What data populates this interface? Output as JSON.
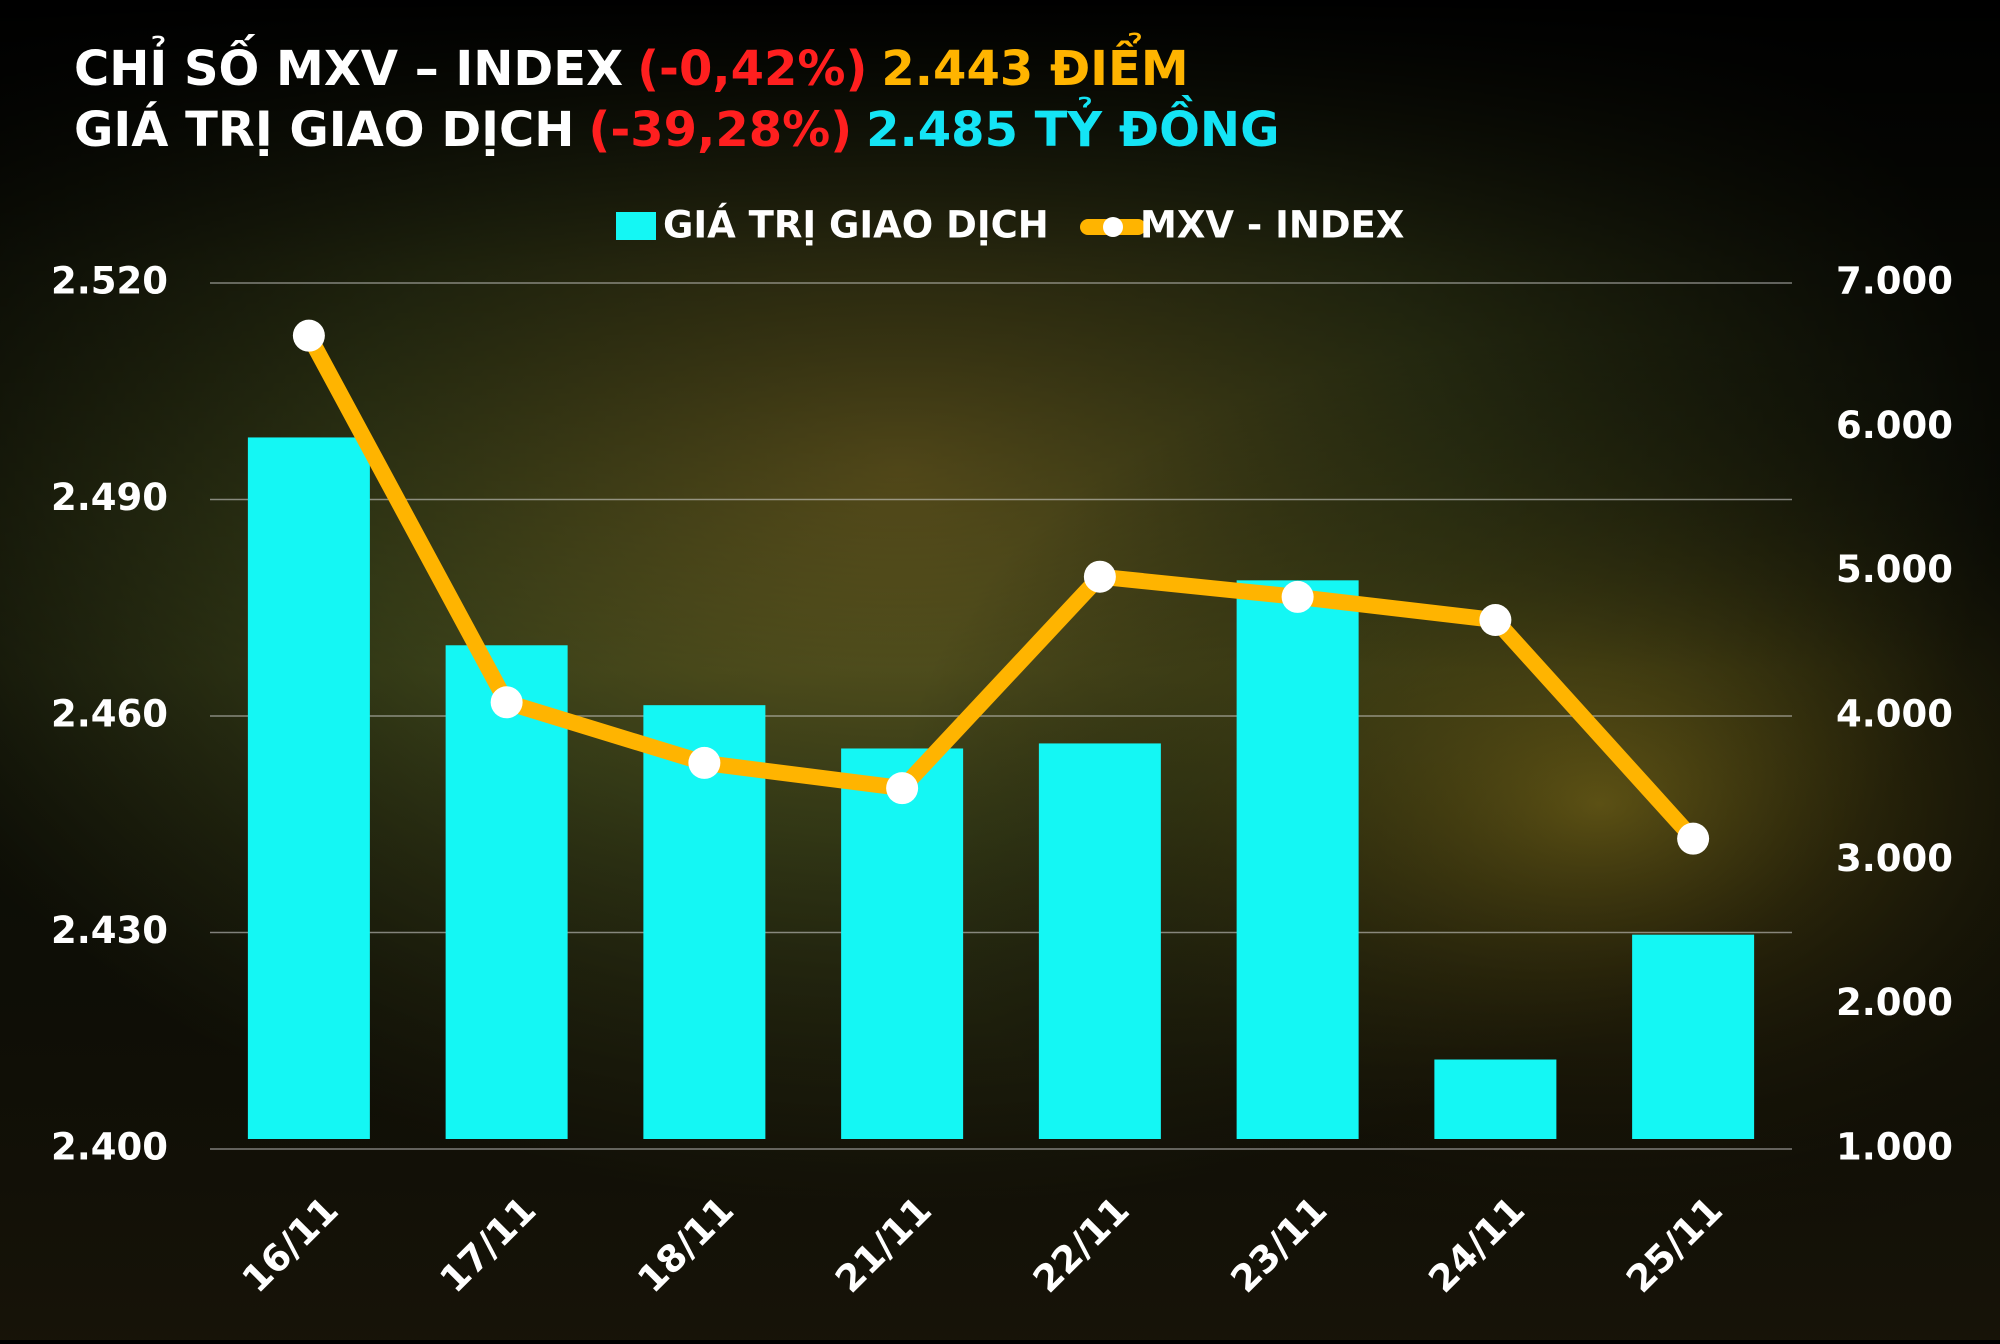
{
  "chart_data": {
    "type": "bar-line",
    "title_parts": [
      {
        "text": "CHỈ SỐ MXV – INDEX",
        "color": "#ffffff"
      },
      {
        "text": "(-0,42%)",
        "color": "#ff1f1f"
      },
      {
        "text": "2.443 ĐIỂM",
        "color": "#ffb400"
      }
    ],
    "subtitle_parts": [
      {
        "text": "GIÁ TRỊ GIAO DỊCH",
        "color": "#ffffff"
      },
      {
        "text": "(-39,28%)",
        "color": "#ff1f1f"
      },
      {
        "text": "2.485 TỶ ĐỒNG",
        "color": "#14e4f5"
      }
    ],
    "categories": [
      "16/11",
      "17/11",
      "18/11",
      "21/11",
      "22/11",
      "23/11",
      "24/11",
      "25/11"
    ],
    "series": [
      {
        "name": "GIÁ TRỊ GIAO DỊCH",
        "type": "bar",
        "axis": "y2",
        "color": "#14f7f4",
        "values": [
          5930,
          4490,
          4075,
          3775,
          3810,
          4940,
          1620,
          2485
        ]
      },
      {
        "name": "MXV - INDEX",
        "type": "line",
        "axis": "y",
        "color": "#ffb400",
        "values": [
          2512.7,
          2461.9,
          2453.5,
          2450,
          2479.3,
          2476.5,
          2473.3,
          2443
        ]
      }
    ],
    "ylim": [
      2400,
      2520
    ],
    "yticks": [
      {
        "value": 2400,
        "label": "2.400"
      },
      {
        "value": 2430,
        "label": "2.430"
      },
      {
        "value": 2460,
        "label": "2.460"
      },
      {
        "value": 2490,
        "label": "2.490"
      },
      {
        "value": 2520,
        "label": "2.520"
      }
    ],
    "y2lim": [
      1000,
      7000
    ],
    "y2ticks": [
      {
        "value": 1000,
        "label": "1.000"
      },
      {
        "value": 2000,
        "label": "2.000"
      },
      {
        "value": 3000,
        "label": "3.000"
      },
      {
        "value": 4000,
        "label": "4.000"
      },
      {
        "value": 5000,
        "label": "5.000"
      },
      {
        "value": 6000,
        "label": "6.000"
      },
      {
        "value": 7000,
        "label": "7.000"
      }
    ],
    "grid": true
  }
}
